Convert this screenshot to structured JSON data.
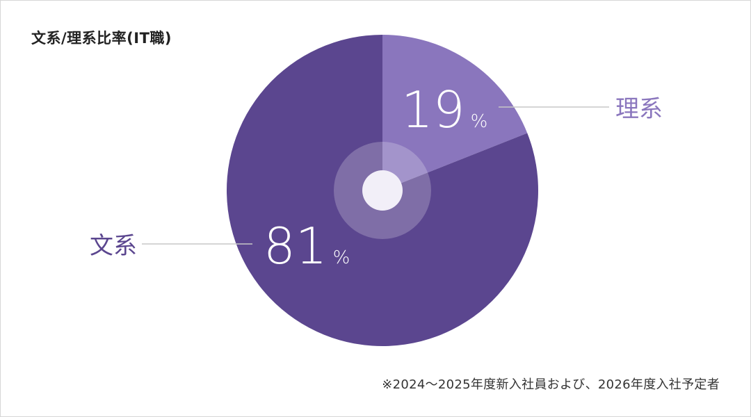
{
  "chart_title": "文系/理系比率(IT職)",
  "footnote": "※2024～2025年度新入社員および、2026年度入社予定者",
  "colors": {
    "bunkei": "#5b468f",
    "rikei": "#8a76bd",
    "leader_line": "#c7c7c7",
    "center": "#f2eff8"
  },
  "chart_data": {
    "type": "pie",
    "title": "文系/理系比率(IT職)",
    "unit": "%",
    "slices": [
      {
        "label": "理系",
        "value": 19,
        "color": "#8a76bd"
      },
      {
        "label": "文系",
        "value": 81,
        "color": "#5b468f"
      }
    ]
  }
}
